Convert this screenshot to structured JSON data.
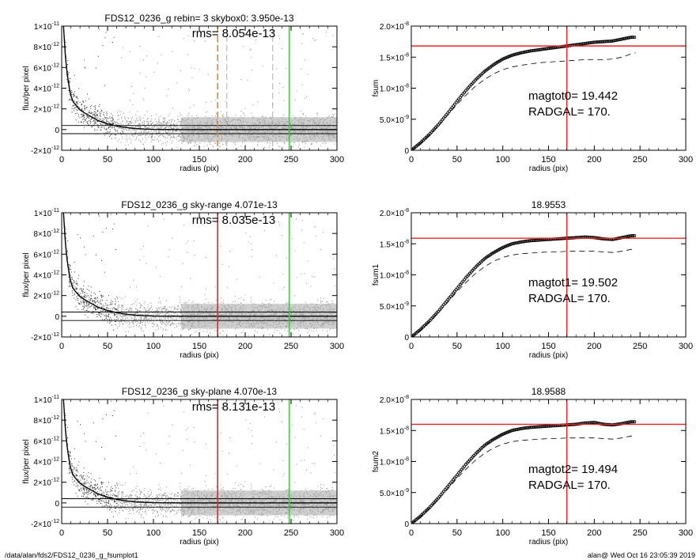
{
  "footer": {
    "left": "/data/alan/fds2/FDS12_0236_g_fsumplot1",
    "right": "alan@  Wed Oct 16 23:05:39 2019"
  },
  "colors": {
    "red": "#ee2222",
    "green": "#22dd22",
    "orange": "#dd8833",
    "gray": "#999999",
    "black": "#000000"
  },
  "chart_data": [
    {
      "type": "scatter",
      "panel": "profile-1",
      "title": "FDS12_0236_g rebin= 3    skybox0:  3.950e-13",
      "annotation": "rms= 8.054e-13",
      "xlabel": "radius (pix)",
      "ylabel": "flux/per pixel",
      "xlim": [
        0,
        300
      ],
      "ylim": [
        -2e-12,
        1e-11
      ],
      "xticks": [
        "0",
        "50",
        "100",
        "150",
        "200",
        "250",
        "300"
      ],
      "yticks": [
        {
          "value": 1e-11,
          "mant": "1×10",
          "exp": "-11"
        },
        {
          "value": 8e-12,
          "mant": "8×10",
          "exp": "-12"
        },
        {
          "value": 6e-12,
          "mant": "6×10",
          "exp": "-12"
        },
        {
          "value": 4e-12,
          "mant": "4×10",
          "exp": "-12"
        },
        {
          "value": 2e-12,
          "mant": "2×10",
          "exp": "-12"
        },
        {
          "value": 0,
          "mant": "0",
          "exp": ""
        },
        {
          "value": -2e-12,
          "mant": "-2×10",
          "exp": "-12"
        }
      ],
      "profile": {
        "x": [
          2,
          3,
          4,
          5,
          6,
          7,
          8,
          9,
          10,
          12,
          14,
          16,
          18,
          20,
          25,
          30,
          35,
          40,
          50,
          60,
          70,
          80,
          90,
          100,
          125,
          150,
          200,
          250,
          300
        ],
        "y": [
          1e-11,
          8.5e-12,
          7.2e-12,
          6.2e-12,
          5.4e-12,
          4.8e-12,
          4.2e-12,
          3.7e-12,
          3.3e-12,
          2.8e-12,
          2.5e-12,
          2.3e-12,
          2.1e-12,
          1.9e-12,
          1.6e-12,
          1.35e-12,
          1.1e-12,
          8.5e-13,
          5.5e-13,
          3.5e-13,
          2e-13,
          1e-13,
          5e-14,
          2e-14,
          0,
          0,
          0,
          0,
          0
        ]
      },
      "hlines": [
        3.95e-13,
        -3.95e-13
      ],
      "vlines": [
        {
          "x": 170,
          "color": "orange",
          "style": "dashed"
        },
        {
          "x": 180,
          "color": "gray",
          "style": "dashed"
        },
        {
          "x": 230,
          "color": "gray",
          "style": "dashed"
        },
        {
          "x": 248,
          "color": "green",
          "style": "solid"
        }
      ]
    },
    {
      "type": "line",
      "panel": "growth-1",
      "title": "",
      "annotation_lines": [
        "magtot0=  19.442",
        "RADGAL=    170."
      ],
      "xlabel": "radius (pix)",
      "ylabel": "fsum",
      "xlim": [
        0,
        300
      ],
      "ylim": [
        0,
        2e-08
      ],
      "xticks": [
        "0",
        "50",
        "100",
        "150",
        "200",
        "250",
        "300"
      ],
      "yticks": [
        {
          "value": 2e-08,
          "mant": "2.0×10",
          "exp": "-8"
        },
        {
          "value": 1.5e-08,
          "mant": "1.5×10",
          "exp": "-8"
        },
        {
          "value": 1e-08,
          "mant": "1.0×10",
          "exp": "-8"
        },
        {
          "value": 5e-09,
          "mant": "5.0×10",
          "exp": "-9"
        },
        {
          "value": 0,
          "mant": "0",
          "exp": ""
        }
      ],
      "curve": {
        "x": [
          0,
          10,
          20,
          30,
          40,
          50,
          60,
          70,
          80,
          90,
          100,
          110,
          120,
          130,
          140,
          150,
          160,
          170,
          180,
          190,
          200,
          210,
          220,
          230,
          240,
          245
        ],
        "y": [
          0,
          1.2e-09,
          2.6e-09,
          4.2e-09,
          6e-09,
          7.9e-09,
          9.7e-09,
          1.13e-08,
          1.27e-08,
          1.38e-08,
          1.47e-08,
          1.53e-08,
          1.57e-08,
          1.6e-08,
          1.62e-08,
          1.64e-08,
          1.66e-08,
          1.68e-08,
          1.7e-08,
          1.72e-08,
          1.74e-08,
          1.75e-08,
          1.76e-08,
          1.79e-08,
          1.82e-08,
          1.82e-08
        ]
      },
      "dashed": {
        "x": [
          0,
          10,
          20,
          30,
          40,
          50,
          60,
          70,
          80,
          90,
          100,
          110,
          120,
          130,
          140,
          150,
          160,
          170,
          180,
          190,
          200,
          210,
          220,
          230,
          240,
          245
        ],
        "y": [
          0,
          1.1e-09,
          2.5e-09,
          4e-09,
          5.7e-09,
          7.4e-09,
          8.9e-09,
          1.03e-08,
          1.14e-08,
          1.23e-08,
          1.3e-08,
          1.34e-08,
          1.37e-08,
          1.39e-08,
          1.41e-08,
          1.42e-08,
          1.43e-08,
          1.44e-08,
          1.45e-08,
          1.46e-08,
          1.46e-08,
          1.46e-08,
          1.47e-08,
          1.5e-08,
          1.55e-08,
          1.57e-08
        ]
      },
      "hline": 1.68e-08,
      "vline": 170
    },
    {
      "type": "scatter",
      "panel": "profile-2",
      "title": "FDS12_0236_g sky-range  4.071e-13",
      "annotation": "rms= 8.035e-13",
      "xlabel": "radius (pix)",
      "ylabel": "flux/per pixel",
      "xlim": [
        0,
        300
      ],
      "ylim": [
        -2e-12,
        1e-11
      ],
      "xticks": [
        "0",
        "50",
        "100",
        "150",
        "200",
        "250",
        "300"
      ],
      "yticks": [
        {
          "value": 1e-11,
          "mant": "1×10",
          "exp": "-11"
        },
        {
          "value": 8e-12,
          "mant": "8×10",
          "exp": "-12"
        },
        {
          "value": 6e-12,
          "mant": "6×10",
          "exp": "-12"
        },
        {
          "value": 4e-12,
          "mant": "4×10",
          "exp": "-12"
        },
        {
          "value": 2e-12,
          "mant": "2×10",
          "exp": "-12"
        },
        {
          "value": 0,
          "mant": "0",
          "exp": ""
        },
        {
          "value": -2e-12,
          "mant": "-2×10",
          "exp": "-12"
        }
      ],
      "profile": {
        "x": [
          2,
          3,
          4,
          5,
          6,
          7,
          8,
          9,
          10,
          12,
          14,
          16,
          18,
          20,
          25,
          30,
          35,
          40,
          50,
          60,
          70,
          80,
          90,
          100,
          125,
          150,
          200,
          250,
          300
        ],
        "y": [
          1e-11,
          8.5e-12,
          7.2e-12,
          6.2e-12,
          5.4e-12,
          4.8e-12,
          4.2e-12,
          3.7e-12,
          3.3e-12,
          2.8e-12,
          2.5e-12,
          2.3e-12,
          2.1e-12,
          1.9e-12,
          1.6e-12,
          1.35e-12,
          1.1e-12,
          8.5e-13,
          5.5e-13,
          3.5e-13,
          2e-13,
          1e-13,
          5e-14,
          2e-14,
          0,
          0,
          0,
          0,
          0
        ]
      },
      "hlines": [
        4.071e-13,
        -4.071e-13
      ],
      "vlines": [
        {
          "x": 170,
          "color": "red",
          "style": "solid"
        },
        {
          "x": 248,
          "color": "green",
          "style": "solid"
        }
      ]
    },
    {
      "type": "line",
      "panel": "growth-2",
      "title": "18.9553",
      "annotation_lines": [
        "magtot1=  19.502",
        "RADGAL=    170."
      ],
      "xlabel": "radius (pix)",
      "ylabel": "fsum1",
      "xlim": [
        0,
        300
      ],
      "ylim": [
        0,
        2e-08
      ],
      "xticks": [
        "0",
        "50",
        "100",
        "150",
        "200",
        "250",
        "300"
      ],
      "yticks": [
        {
          "value": 2e-08,
          "mant": "2.0×10",
          "exp": "-8"
        },
        {
          "value": 1.5e-08,
          "mant": "1.5×10",
          "exp": "-8"
        },
        {
          "value": 1e-08,
          "mant": "1.0×10",
          "exp": "-8"
        },
        {
          "value": 5e-09,
          "mant": "5.0×10",
          "exp": "-9"
        },
        {
          "value": 0,
          "mant": "0",
          "exp": ""
        }
      ],
      "curve": {
        "x": [
          0,
          10,
          20,
          30,
          40,
          50,
          60,
          70,
          80,
          90,
          100,
          110,
          120,
          130,
          140,
          150,
          160,
          170,
          180,
          190,
          200,
          210,
          220,
          230,
          240,
          245
        ],
        "y": [
          0,
          1.2e-09,
          2.6e-09,
          4.2e-09,
          6e-09,
          7.8e-09,
          9.6e-09,
          1.12e-08,
          1.26e-08,
          1.36e-08,
          1.44e-08,
          1.5e-08,
          1.53e-08,
          1.55e-08,
          1.56e-08,
          1.57e-08,
          1.58e-08,
          1.59e-08,
          1.6e-08,
          1.61e-08,
          1.6e-08,
          1.58e-08,
          1.57e-08,
          1.6e-08,
          1.63e-08,
          1.63e-08
        ]
      },
      "dashed": {
        "x": [
          0,
          10,
          20,
          30,
          40,
          50,
          60,
          70,
          80,
          90,
          100,
          110,
          120,
          130,
          140,
          150,
          160,
          170,
          180,
          190,
          200,
          210,
          220,
          230,
          240,
          245
        ],
        "y": [
          0,
          1.1e-09,
          2.5e-09,
          4e-09,
          5.6e-09,
          7.3e-09,
          8.8e-09,
          1.02e-08,
          1.13e-08,
          1.22e-08,
          1.28e-08,
          1.32e-08,
          1.34e-08,
          1.35e-08,
          1.36e-08,
          1.37e-08,
          1.37e-08,
          1.38e-08,
          1.38e-08,
          1.38e-08,
          1.38e-08,
          1.37e-08,
          1.36e-08,
          1.38e-08,
          1.41e-08,
          1.42e-08
        ]
      },
      "hline": 1.59e-08,
      "vline": 170
    },
    {
      "type": "scatter",
      "panel": "profile-3",
      "title": "FDS12_0236_g sky-plane  4.070e-13",
      "annotation": "rms= 8.131e-13",
      "xlabel": "radius (pix)",
      "ylabel": "flux/per pixel",
      "xlim": [
        0,
        300
      ],
      "ylim": [
        -2e-12,
        1e-11
      ],
      "xticks": [
        "0",
        "50",
        "100",
        "150",
        "200",
        "250",
        "300"
      ],
      "yticks": [
        {
          "value": 1e-11,
          "mant": "1×10",
          "exp": "-11"
        },
        {
          "value": 8e-12,
          "mant": "8×10",
          "exp": "-12"
        },
        {
          "value": 6e-12,
          "mant": "6×10",
          "exp": "-12"
        },
        {
          "value": 4e-12,
          "mant": "4×10",
          "exp": "-12"
        },
        {
          "value": 2e-12,
          "mant": "2×10",
          "exp": "-12"
        },
        {
          "value": 0,
          "mant": "0",
          "exp": ""
        },
        {
          "value": -2e-12,
          "mant": "-2×10",
          "exp": "-12"
        }
      ],
      "profile": {
        "x": [
          2,
          3,
          4,
          5,
          6,
          7,
          8,
          9,
          10,
          12,
          14,
          16,
          18,
          20,
          25,
          30,
          35,
          40,
          50,
          60,
          70,
          80,
          90,
          100,
          125,
          150,
          200,
          250,
          300
        ],
        "y": [
          1e-11,
          8.5e-12,
          7.2e-12,
          6.2e-12,
          5.4e-12,
          4.8e-12,
          4.2e-12,
          3.7e-12,
          3.3e-12,
          2.8e-12,
          2.5e-12,
          2.3e-12,
          2.1e-12,
          1.9e-12,
          1.6e-12,
          1.35e-12,
          1.1e-12,
          8.5e-13,
          5.5e-13,
          3.5e-13,
          2e-13,
          1e-13,
          5e-14,
          2e-14,
          0,
          0,
          0,
          0,
          0
        ]
      },
      "hlines": [
        4.07e-13,
        -4.07e-13
      ],
      "vlines": [
        {
          "x": 170,
          "color": "red",
          "style": "solid"
        },
        {
          "x": 248,
          "color": "green",
          "style": "solid"
        }
      ]
    },
    {
      "type": "line",
      "panel": "growth-3",
      "title": "18.9588",
      "annotation_lines": [
        "magtot2=  19.494",
        "RADGAL=    170."
      ],
      "xlabel": "radius (pix)",
      "ylabel": "fsum2",
      "xlim": [
        0,
        300
      ],
      "ylim": [
        0,
        2e-08
      ],
      "xticks": [
        "0",
        "50",
        "100",
        "150",
        "200",
        "250",
        "300"
      ],
      "yticks": [
        {
          "value": 2e-08,
          "mant": "2.0×10",
          "exp": "-8"
        },
        {
          "value": 1.5e-08,
          "mant": "1.5×10",
          "exp": "-8"
        },
        {
          "value": 1e-08,
          "mant": "1.0×10",
          "exp": "-8"
        },
        {
          "value": 5e-09,
          "mant": "5.0×10",
          "exp": "-9"
        },
        {
          "value": 0,
          "mant": "0",
          "exp": ""
        }
      ],
      "curve": {
        "x": [
          0,
          10,
          20,
          30,
          40,
          50,
          60,
          70,
          80,
          90,
          100,
          110,
          120,
          130,
          140,
          150,
          160,
          170,
          180,
          190,
          200,
          210,
          220,
          230,
          240,
          245
        ],
        "y": [
          0,
          1.2e-09,
          2.6e-09,
          4.2e-09,
          6e-09,
          7.8e-09,
          9.6e-09,
          1.12e-08,
          1.26e-08,
          1.36e-08,
          1.44e-08,
          1.5e-08,
          1.53e-08,
          1.55e-08,
          1.56e-08,
          1.57e-08,
          1.58e-08,
          1.59e-08,
          1.6e-08,
          1.62e-08,
          1.63e-08,
          1.6e-08,
          1.59e-08,
          1.61e-08,
          1.64e-08,
          1.64e-08
        ]
      },
      "dashed": {
        "x": [
          0,
          10,
          20,
          30,
          40,
          50,
          60,
          70,
          80,
          90,
          100,
          110,
          120,
          130,
          140,
          150,
          160,
          170,
          180,
          190,
          200,
          210,
          220,
          230,
          240,
          245
        ],
        "y": [
          0,
          1.1e-09,
          2.5e-09,
          4e-09,
          5.6e-09,
          7.3e-09,
          8.8e-09,
          1.02e-08,
          1.13e-08,
          1.22e-08,
          1.28e-08,
          1.32e-08,
          1.34e-08,
          1.35e-08,
          1.36e-08,
          1.37e-08,
          1.37e-08,
          1.38e-08,
          1.38e-08,
          1.38e-08,
          1.38e-08,
          1.37e-08,
          1.36e-08,
          1.38e-08,
          1.41e-08,
          1.42e-08
        ]
      },
      "hline": 1.6e-08,
      "vline": 170
    }
  ]
}
